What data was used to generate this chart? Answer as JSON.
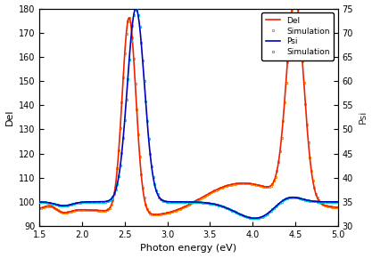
{
  "xlabel": "Photon energy (eV)",
  "ylabel_left": "Del",
  "ylabel_right": "Psi",
  "xlim": [
    1.5,
    5.0
  ],
  "ylim_left": [
    90,
    180
  ],
  "ylim_right": [
    30,
    75
  ],
  "del_color": "#ee2200",
  "del_sim_color": "#ff8800",
  "psi_color": "#0000bb",
  "psi_sim_color": "#00cccc",
  "legend_labels": [
    "Del",
    "Simulation",
    "Psi",
    "Simulation"
  ],
  "background_color": "#ffffff",
  "xticks": [
    1.5,
    2.0,
    2.5,
    3.0,
    3.5,
    4.0,
    4.5,
    5.0
  ],
  "yticks_left": [
    90,
    100,
    110,
    120,
    130,
    140,
    150,
    160,
    170,
    180
  ],
  "yticks_right": [
    30,
    35,
    40,
    45,
    50,
    55,
    60,
    65,
    70,
    75
  ]
}
